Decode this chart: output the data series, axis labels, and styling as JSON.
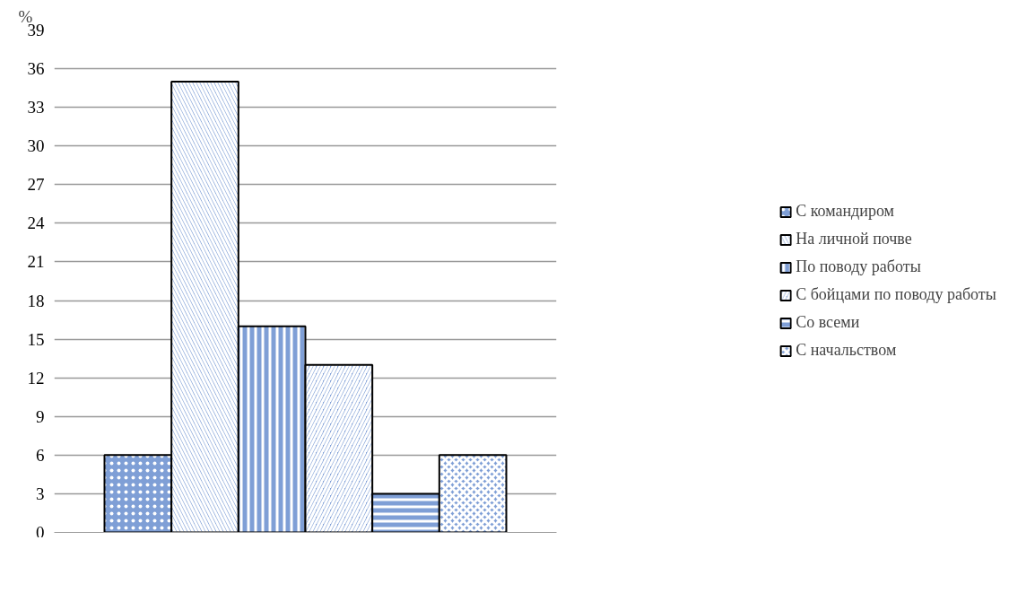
{
  "chart_data": {
    "type": "bar",
    "ylabel": "%",
    "categories": [
      null
    ],
    "series": [
      {
        "name": "С командиром",
        "color": "#7f9fd6",
        "values": [
          6
        ]
      },
      {
        "name": "На личной почве",
        "color": "#7f9fd6",
        "values": [
          35
        ]
      },
      {
        "name": "По поводу работы",
        "color": "#7f9fd6",
        "values": [
          16
        ]
      },
      {
        "name": "С бойцами по поводу работы",
        "color": "#7f9fd6",
        "values": [
          13
        ]
      },
      {
        "name": "Со всеми",
        "color": "#7f9fd6",
        "values": [
          3
        ]
      },
      {
        "name": "С начальством",
        "color": "#7f9fd6",
        "values": [
          6
        ]
      }
    ],
    "ylim": [
      0,
      39
    ],
    "yticks": [
      0,
      3,
      6,
      9,
      12,
      15,
      18,
      21,
      24,
      27,
      30,
      33,
      36,
      39
    ],
    "grid": "y",
    "legend": "right",
    "tick_labels": "y"
  }
}
